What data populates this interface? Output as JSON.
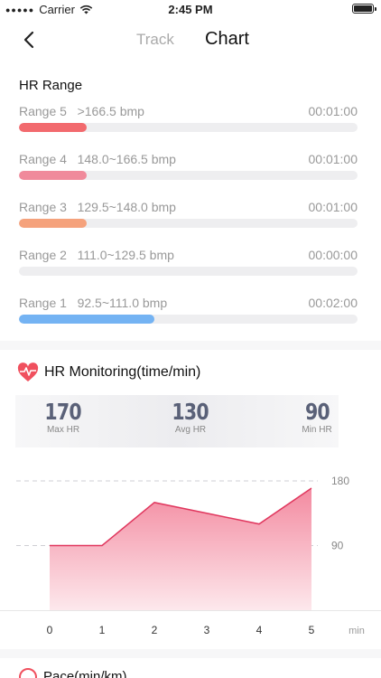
{
  "status_bar": {
    "carrier": "Carrier",
    "time": "2:45 PM"
  },
  "nav": {
    "tab_track": "Track",
    "tab_chart": "Chart"
  },
  "hr_range": {
    "title": "HR Range",
    "ranges": [
      {
        "label": "Range 5   >166.5 bmp",
        "time": "00:01:00",
        "fill_fraction": 0.2,
        "color": "#f26a6e"
      },
      {
        "label": "Range 4   148.0~166.5 bmp",
        "time": "00:01:00",
        "fill_fraction": 0.2,
        "color": "#f08a9b"
      },
      {
        "label": "Range 3   129.5~148.0 bmp",
        "time": "00:01:00",
        "fill_fraction": 0.2,
        "color": "#f5a27c"
      },
      {
        "label": "Range 2   111.0~129.5 bmp",
        "time": "00:00:00",
        "fill_fraction": 0.0,
        "color": "#7aa8e8"
      },
      {
        "label": "Range 1   92.5~111.0 bmp",
        "time": "00:02:00",
        "fill_fraction": 0.4,
        "color": "#74b3f3"
      }
    ]
  },
  "hr_monitoring": {
    "title": "HR Monitoring(time/min)",
    "icon": "heart-pulse-icon",
    "stats": [
      {
        "value": "170",
        "label": "Max HR"
      },
      {
        "value": "130",
        "label": "Avg HR"
      },
      {
        "value": "90",
        "label": "Min HR"
      }
    ]
  },
  "chart_data": {
    "type": "area",
    "x": [
      0,
      1,
      2,
      3,
      4,
      5
    ],
    "xlabel": "min",
    "y_ticks": [
      "180",
      "90"
    ],
    "ylim": [
      0,
      180
    ],
    "series": [
      {
        "values": [
          90,
          90,
          150,
          135,
          120,
          170
        ]
      }
    ],
    "colors": {
      "line": "#e0375e",
      "fill_top": "#f38aa0",
      "fill_bottom": "#fde8ec"
    }
  },
  "next_section": {
    "title": "Pace(min/km)"
  }
}
